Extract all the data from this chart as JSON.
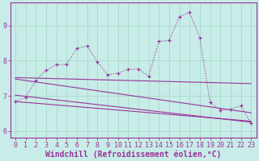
{
  "xlabel": "Windchill (Refroidissement éolien,°C)",
  "xlim": [
    -0.5,
    23.5
  ],
  "ylim": [
    5.8,
    9.65
  ],
  "yticks": [
    6,
    7,
    8,
    9
  ],
  "xticks": [
    0,
    1,
    2,
    3,
    4,
    5,
    6,
    7,
    8,
    9,
    10,
    11,
    12,
    13,
    14,
    15,
    16,
    17,
    18,
    19,
    20,
    21,
    22,
    23
  ],
  "bg_color": "#c8ece8",
  "line_color": "#993399",
  "grid_color": "#aaddcc",
  "main_data": [
    6.84,
    6.96,
    7.44,
    7.73,
    7.89,
    7.9,
    8.35,
    8.42,
    7.97,
    7.6,
    7.65,
    7.75,
    7.77,
    7.56,
    8.55,
    8.58,
    9.25,
    9.38,
    8.65,
    6.82,
    6.6,
    6.62,
    6.72,
    6.22
  ],
  "reg_lines": [
    {
      "x0": 0,
      "y0": 7.52,
      "x1": 23,
      "y1": 7.35
    },
    {
      "x0": 0,
      "y0": 6.84,
      "x1": 23,
      "y1": 6.28
    },
    {
      "x0": 0,
      "y0": 7.48,
      "x1": 23,
      "y1": 6.52
    },
    {
      "x0": 0,
      "y0": 7.02,
      "x1": 23,
      "y1": 6.25
    }
  ],
  "tick_fontsize": 6,
  "xlabel_fontsize": 7
}
